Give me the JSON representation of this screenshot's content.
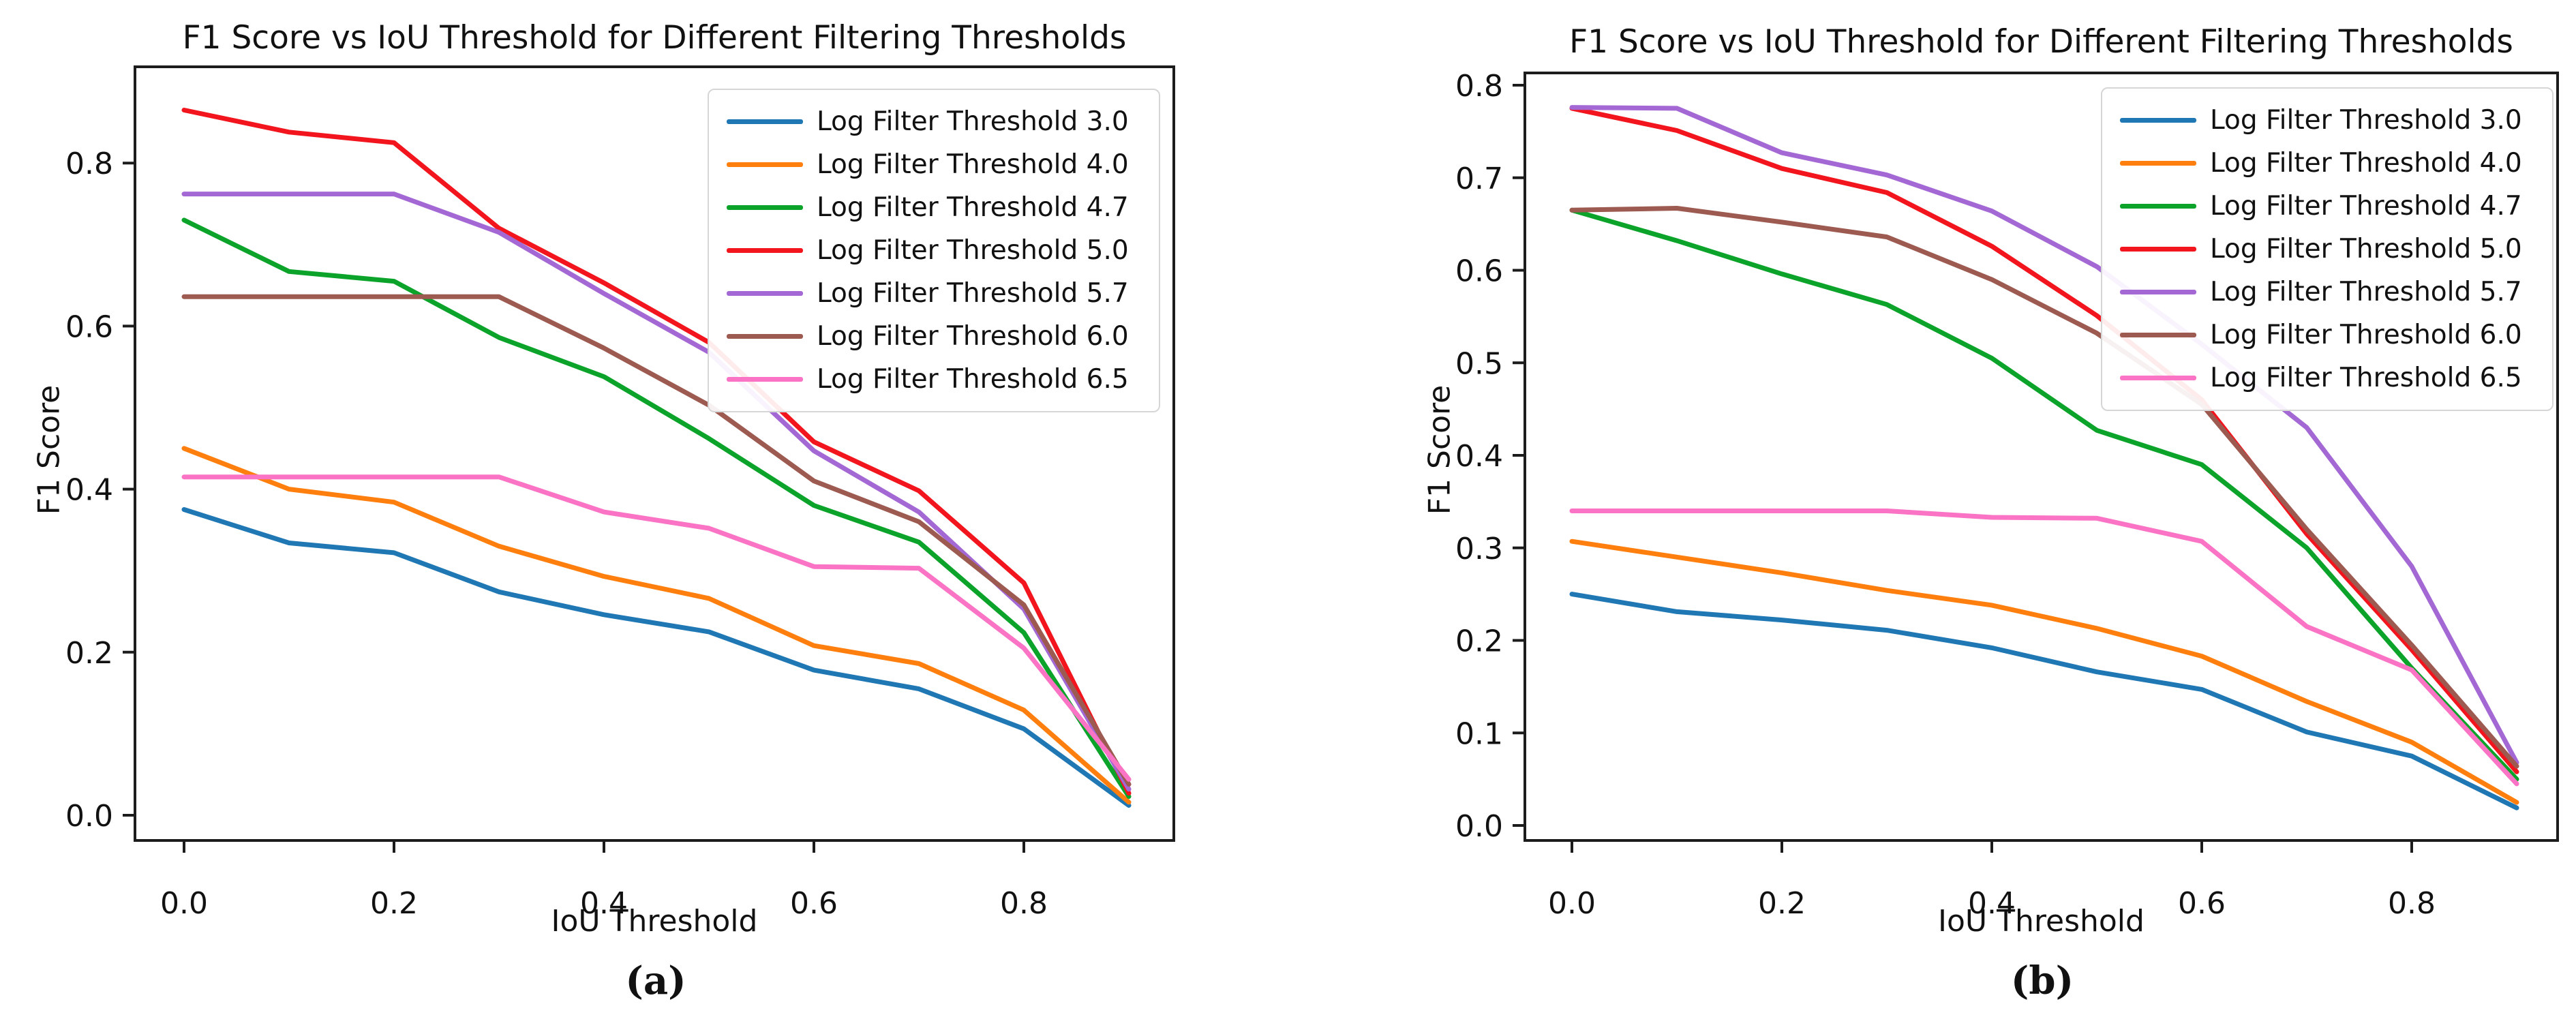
{
  "figure": {
    "background": "#ffffff",
    "text_color": "#111111",
    "axis_color": "#1c1c1c"
  },
  "chart_data": [
    {
      "id": "a",
      "type": "line",
      "title": "F1 Score vs IoU Threshold for Different Filtering Thresholds",
      "xlabel": "IoU Threshold",
      "ylabel": "F1 Score",
      "caption": "(a)",
      "legend_position": "upper right",
      "grid": false,
      "xlim": [
        -0.045,
        0.945
      ],
      "ylim": [
        -0.031,
        0.918
      ],
      "x": [
        0.0,
        0.1,
        0.2,
        0.3,
        0.4,
        0.5,
        0.6,
        0.7,
        0.8,
        0.9
      ],
      "xtick_values": [
        0.0,
        0.2,
        0.4,
        0.6,
        0.8
      ],
      "xtick_labels": [
        "0.0",
        "0.2",
        "0.4",
        "0.6",
        "0.8"
      ],
      "ytick_values": [
        0.0,
        0.2,
        0.4,
        0.6,
        0.8
      ],
      "ytick_labels": [
        "0.0",
        "0.2",
        "0.4",
        "0.6",
        "0.8"
      ],
      "series": [
        {
          "name": "Log Filter Threshold 3.0",
          "color": "#1f77b4",
          "values": [
            0.375,
            0.334,
            0.322,
            0.274,
            0.246,
            0.225,
            0.178,
            0.155,
            0.106,
            0.012
          ]
        },
        {
          "name": "Log Filter Threshold 4.0",
          "color": "#ff7f0e",
          "values": [
            0.45,
            0.4,
            0.384,
            0.33,
            0.293,
            0.266,
            0.208,
            0.186,
            0.129,
            0.016
          ]
        },
        {
          "name": "Log Filter Threshold 4.7",
          "color": "#0ba32a",
          "values": [
            0.73,
            0.667,
            0.655,
            0.586,
            0.538,
            0.462,
            0.38,
            0.335,
            0.224,
            0.023
          ]
        },
        {
          "name": "Log Filter Threshold 5.0",
          "color": "#f2151d",
          "values": [
            0.865,
            0.838,
            0.825,
            0.72,
            0.653,
            0.58,
            0.458,
            0.398,
            0.285,
            0.027
          ]
        },
        {
          "name": "Log Filter Threshold 5.7",
          "color": "#a468d5",
          "values": [
            0.762,
            0.762,
            0.762,
            0.715,
            0.64,
            0.568,
            0.447,
            0.372,
            0.253,
            0.032
          ]
        },
        {
          "name": "Log Filter Threshold 6.0",
          "color": "#9d5a50",
          "values": [
            0.636,
            0.636,
            0.636,
            0.636,
            0.573,
            0.503,
            0.41,
            0.36,
            0.258,
            0.038
          ]
        },
        {
          "name": "Log Filter Threshold 6.5",
          "color": "#fa73c4",
          "values": [
            0.415,
            0.415,
            0.415,
            0.415,
            0.372,
            0.352,
            0.305,
            0.303,
            0.205,
            0.044
          ]
        }
      ]
    },
    {
      "id": "b",
      "type": "line",
      "title": "F1 Score vs IoU Threshold for Different Filtering Thresholds",
      "xlabel": "IoU Threshold",
      "ylabel": "F1 Score",
      "caption": "(b)",
      "legend_position": "upper right",
      "grid": false,
      "xlim": [
        -0.045,
        0.945
      ],
      "ylim": [
        -0.016,
        0.813
      ],
      "x": [
        0.0,
        0.1,
        0.2,
        0.3,
        0.4,
        0.5,
        0.6,
        0.7,
        0.8,
        0.9
      ],
      "xtick_values": [
        0.0,
        0.2,
        0.4,
        0.6,
        0.8
      ],
      "xtick_labels": [
        "0.0",
        "0.2",
        "0.4",
        "0.6",
        "0.8"
      ],
      "ytick_values": [
        0.0,
        0.1,
        0.2,
        0.3,
        0.4,
        0.5,
        0.6,
        0.7,
        0.8
      ],
      "ytick_labels": [
        "0.0",
        "0.1",
        "0.2",
        "0.3",
        "0.4",
        "0.5",
        "0.6",
        "0.7",
        "0.8"
      ],
      "series": [
        {
          "name": "Log Filter Threshold 3.0",
          "color": "#1f77b4",
          "values": [
            0.25,
            0.231,
            0.222,
            0.211,
            0.192,
            0.166,
            0.147,
            0.101,
            0.075,
            0.019
          ]
        },
        {
          "name": "Log Filter Threshold 4.0",
          "color": "#ff7f0e",
          "values": [
            0.307,
            0.29,
            0.273,
            0.254,
            0.238,
            0.213,
            0.183,
            0.134,
            0.09,
            0.025
          ]
        },
        {
          "name": "Log Filter Threshold 4.7",
          "color": "#0ba32a",
          "values": [
            0.665,
            0.632,
            0.596,
            0.563,
            0.505,
            0.427,
            0.39,
            0.3,
            0.17,
            0.05
          ]
        },
        {
          "name": "Log Filter Threshold 5.0",
          "color": "#f2151d",
          "values": [
            0.775,
            0.751,
            0.71,
            0.684,
            0.626,
            0.551,
            0.46,
            0.315,
            0.19,
            0.058
          ]
        },
        {
          "name": "Log Filter Threshold 5.7",
          "color": "#a468d5",
          "values": [
            0.776,
            0.775,
            0.727,
            0.703,
            0.664,
            0.604,
            0.52,
            0.43,
            0.28,
            0.068
          ]
        },
        {
          "name": "Log Filter Threshold 6.0",
          "color": "#9d5a50",
          "values": [
            0.665,
            0.667,
            0.652,
            0.636,
            0.59,
            0.532,
            0.455,
            0.32,
            0.195,
            0.064
          ]
        },
        {
          "name": "Log Filter Threshold 6.5",
          "color": "#fa73c4",
          "values": [
            0.34,
            0.34,
            0.34,
            0.34,
            0.333,
            0.332,
            0.307,
            0.215,
            0.168,
            0.045
          ]
        }
      ]
    }
  ]
}
